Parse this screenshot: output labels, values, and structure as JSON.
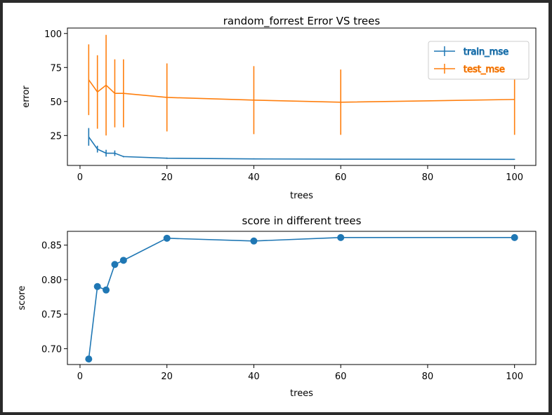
{
  "colors": {
    "train": "#1f77b4",
    "test": "#ff7f0e",
    "score": "#1f77b4",
    "background": "#2b2b2b"
  },
  "chart_data": [
    {
      "type": "line",
      "title": "random_forrest Error VS trees",
      "xlabel": "trees",
      "ylabel": "error",
      "xlim": [
        -2.9,
        104.9
      ],
      "ylim": [
        3,
        104
      ],
      "xticks": [
        0,
        20,
        40,
        60,
        80,
        100
      ],
      "yticks": [
        25,
        50,
        75,
        100
      ],
      "x": [
        2,
        4,
        6,
        8,
        10,
        20,
        40,
        60,
        100
      ],
      "legend_position": "top-right",
      "series": [
        {
          "name": "train_mse",
          "color_key": "train",
          "values": [
            24,
            15,
            12,
            12,
            9.5,
            8.3,
            7.8,
            7.6,
            7.5
          ],
          "error": [
            6.5,
            2.5,
            2.5,
            2,
            0.5,
            0.5,
            0.4,
            0.3,
            0.3
          ]
        },
        {
          "name": "test_mse",
          "color_key": "test",
          "values": [
            66,
            57,
            62,
            56,
            56,
            53,
            51,
            49.5,
            51.5
          ],
          "error": [
            26,
            27,
            37,
            25,
            25,
            25,
            25,
            24,
            26
          ]
        }
      ]
    },
    {
      "type": "scatter",
      "title": "score in different trees",
      "xlabel": "trees",
      "ylabel": "score",
      "xlim": [
        -2.9,
        104.9
      ],
      "ylim": [
        0.677,
        0.87
      ],
      "xticks": [
        0,
        20,
        40,
        60,
        80,
        100
      ],
      "yticks": [
        0.7,
        0.75,
        0.8,
        0.85
      ],
      "x": [
        2,
        4,
        6,
        8,
        10,
        20,
        40,
        60,
        100
      ],
      "series": [
        {
          "color_key": "score",
          "values": [
            0.685,
            0.79,
            0.785,
            0.822,
            0.828,
            0.86,
            0.856,
            0.861,
            0.861
          ]
        }
      ]
    }
  ]
}
